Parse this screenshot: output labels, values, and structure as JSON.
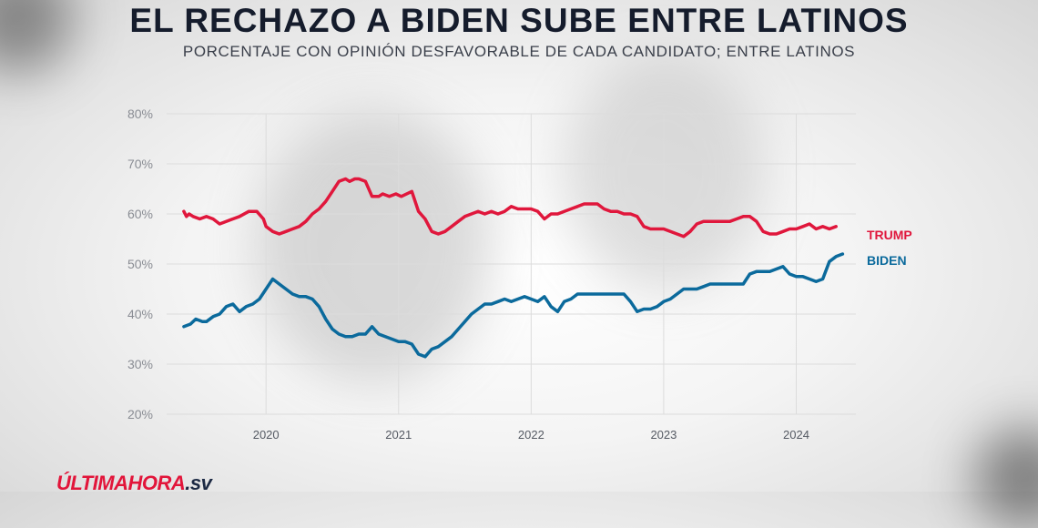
{
  "header": {
    "title": "EL RECHAZO A BIDEN SUBE ENTRE LATINOS",
    "subtitle": "PORCENTAJE CON OPINIÓN DESFAVORABLE DE CADA CANDIDATO; ENTRE LATINOS"
  },
  "logo": {
    "part1": "ÚLTIMAHORA",
    "part2": ".sv"
  },
  "colors": {
    "trump": "#e0173c",
    "biden": "#0b6a9c",
    "grid": "#dcdcdc"
  },
  "chart_data": {
    "type": "line",
    "title": "EL RECHAZO A BIDEN SUBE ENTRE LATINOS",
    "subtitle": "PORCENTAJE CON OPINIÓN DESFAVORABLE DE CADA CANDIDATO; ENTRE LATINOS",
    "xlim": [
      2019.25,
      2024.45
    ],
    "ylim": [
      20,
      80
    ],
    "x_ticks": [
      2020,
      2021,
      2022,
      2023,
      2024
    ],
    "x_tick_labels": [
      "2020",
      "2021",
      "2022",
      "2023",
      "2024"
    ],
    "y_ticks": [
      20,
      30,
      40,
      50,
      60,
      70,
      80
    ],
    "y_tick_labels": [
      "20%",
      "30%",
      "40%",
      "50%",
      "60%",
      "70%",
      "80%"
    ],
    "grid": true,
    "series": [
      {
        "name": "TRUMP",
        "x": [
          2019.38,
          2019.4,
          2019.42,
          2019.45,
          2019.5,
          2019.55,
          2019.6,
          2019.65,
          2019.7,
          2019.75,
          2019.8,
          2019.87,
          2019.93,
          2019.98,
          2020.0,
          2020.05,
          2020.1,
          2020.15,
          2020.2,
          2020.25,
          2020.3,
          2020.35,
          2020.4,
          2020.45,
          2020.5,
          2020.55,
          2020.6,
          2020.63,
          2020.67,
          2020.7,
          2020.75,
          2020.8,
          2020.85,
          2020.88,
          2020.93,
          2020.98,
          2021.02,
          2021.1,
          2021.15,
          2021.2,
          2021.25,
          2021.3,
          2021.35,
          2021.4,
          2021.45,
          2021.5,
          2021.55,
          2021.6,
          2021.65,
          2021.7,
          2021.75,
          2021.8,
          2021.85,
          2021.9,
          2021.95,
          2022.0,
          2022.05,
          2022.1,
          2022.15,
          2022.2,
          2022.25,
          2022.3,
          2022.35,
          2022.4,
          2022.45,
          2022.5,
          2022.55,
          2022.6,
          2022.65,
          2022.7,
          2022.75,
          2022.8,
          2022.85,
          2022.9,
          2022.95,
          2023.0,
          2023.05,
          2023.1,
          2023.15,
          2023.2,
          2023.25,
          2023.3,
          2023.35,
          2023.4,
          2023.45,
          2023.5,
          2023.55,
          2023.6,
          2023.65,
          2023.7,
          2023.75,
          2023.8,
          2023.85,
          2023.9,
          2023.95,
          2024.0,
          2024.05,
          2024.1,
          2024.15,
          2024.2,
          2024.25,
          2024.3
        ],
        "values": [
          60.5,
          59.5,
          60,
          59.5,
          59,
          59.5,
          59,
          58,
          58.5,
          59,
          59.5,
          60.5,
          60.5,
          59,
          57.5,
          56.5,
          56,
          56.5,
          57,
          57.5,
          58.5,
          60,
          61,
          62.5,
          64.5,
          66.5,
          67,
          66.5,
          67,
          67,
          66.5,
          63.5,
          63.5,
          64,
          63.5,
          64,
          63.5,
          64.5,
          60.5,
          59,
          56.5,
          56,
          56.5,
          57.5,
          58.5,
          59.5,
          60,
          60.5,
          60,
          60.5,
          60,
          60.5,
          61.5,
          61,
          61,
          61,
          60.5,
          59,
          60,
          60,
          60.5,
          61,
          61.5,
          62,
          62,
          62,
          61,
          60.5,
          60.5,
          60,
          60,
          59.5,
          57.5,
          57,
          57,
          57,
          56.5,
          56,
          55.5,
          56.5,
          58,
          58.5,
          58.5,
          58.5,
          58.5,
          58.5,
          59,
          59.5,
          59.5,
          58.5,
          56.5,
          56,
          56,
          56.5,
          57,
          57,
          57.5,
          58,
          57,
          57.5,
          57,
          57.5
        ]
      },
      {
        "name": "BIDEN",
        "x": [
          2019.38,
          2019.43,
          2019.47,
          2019.52,
          2019.55,
          2019.6,
          2019.65,
          2019.7,
          2019.75,
          2019.8,
          2019.85,
          2019.9,
          2019.95,
          2020.0,
          2020.05,
          2020.1,
          2020.15,
          2020.2,
          2020.25,
          2020.3,
          2020.35,
          2020.4,
          2020.45,
          2020.5,
          2020.55,
          2020.6,
          2020.65,
          2020.7,
          2020.75,
          2020.8,
          2020.85,
          2020.9,
          2020.95,
          2021.0,
          2021.05,
          2021.1,
          2021.15,
          2021.2,
          2021.25,
          2021.3,
          2021.35,
          2021.4,
          2021.45,
          2021.5,
          2021.55,
          2021.6,
          2021.65,
          2021.7,
          2021.75,
          2021.8,
          2021.85,
          2021.9,
          2021.95,
          2022.0,
          2022.05,
          2022.1,
          2022.15,
          2022.2,
          2022.25,
          2022.3,
          2022.35,
          2022.4,
          2022.45,
          2022.5,
          2022.55,
          2022.6,
          2022.65,
          2022.7,
          2022.75,
          2022.8,
          2022.85,
          2022.9,
          2022.95,
          2023.0,
          2023.05,
          2023.1,
          2023.15,
          2023.2,
          2023.25,
          2023.3,
          2023.35,
          2023.4,
          2023.45,
          2023.5,
          2023.55,
          2023.6,
          2023.65,
          2023.7,
          2023.75,
          2023.8,
          2023.85,
          2023.9,
          2023.95,
          2024.0,
          2024.05,
          2024.1,
          2024.15,
          2024.2,
          2024.25,
          2024.3,
          2024.35
        ],
        "values": [
          37.5,
          38,
          39,
          38.5,
          38.5,
          39.5,
          40,
          41.5,
          42,
          40.5,
          41.5,
          42,
          43,
          45,
          47,
          46,
          45,
          44,
          43.5,
          43.5,
          43,
          41.5,
          39,
          37,
          36,
          35.5,
          35.5,
          36,
          36,
          37.5,
          36,
          35.5,
          35,
          34.5,
          34.5,
          34,
          32,
          31.5,
          33,
          33.5,
          34.5,
          35.5,
          37,
          38.5,
          40,
          41,
          42,
          42,
          42.5,
          43,
          42.5,
          43,
          43.5,
          43,
          42.5,
          43.5,
          41.5,
          40.5,
          42.5,
          43,
          44,
          44,
          44,
          44,
          44,
          44,
          44,
          44,
          42.5,
          40.5,
          41,
          41,
          41.5,
          42.5,
          43,
          44,
          45,
          45,
          45,
          45.5,
          46,
          46,
          46,
          46,
          46,
          46,
          48,
          48.5,
          48.5,
          48.5,
          49,
          49.5,
          48,
          47.5,
          47.5,
          47,
          46.5,
          47,
          50.5,
          51.5,
          52
        ]
      }
    ]
  }
}
